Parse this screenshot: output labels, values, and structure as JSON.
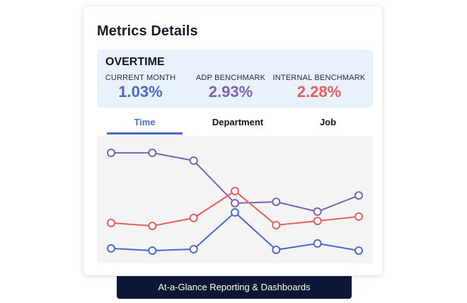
{
  "card": {
    "title": "Metrics Details"
  },
  "summary": {
    "heading": "OVERTIME",
    "metrics": [
      {
        "label": "CURRENT MONTH",
        "value": "1.03%",
        "color": "#4b6ac8"
      },
      {
        "label": "ADP BENCHMARK",
        "value": "2.93%",
        "color": "#7c62b3"
      },
      {
        "label": "INTERNAL BENCHMARK",
        "value": "2.28%",
        "color": "#ea5d5d"
      }
    ]
  },
  "tabs": [
    {
      "label": "Time",
      "active": true
    },
    {
      "label": "Department",
      "active": false
    },
    {
      "label": "Job",
      "active": false
    }
  ],
  "chart_data": {
    "type": "line",
    "x": [
      1,
      2,
      3,
      4,
      5,
      6,
      7
    ],
    "ylim": [
      0,
      100
    ],
    "grid": false,
    "series": [
      {
        "color": "#7c62b3",
        "values": [
          86.7,
          86.7,
          80.6,
          47.2,
          48.3,
          40.6,
          53.3
        ]
      },
      {
        "color": "#ea5d5d",
        "values": [
          31.7,
          29.4,
          35.6,
          56.7,
          30.0,
          33.3,
          36.7
        ]
      },
      {
        "color": "#4b6ac8",
        "values": [
          11.7,
          10.0,
          11.1,
          40.0,
          10.6,
          15.6,
          10.0
        ]
      }
    ]
  },
  "banner": {
    "text": "At-a-Glance Reporting & Dashboards"
  }
}
